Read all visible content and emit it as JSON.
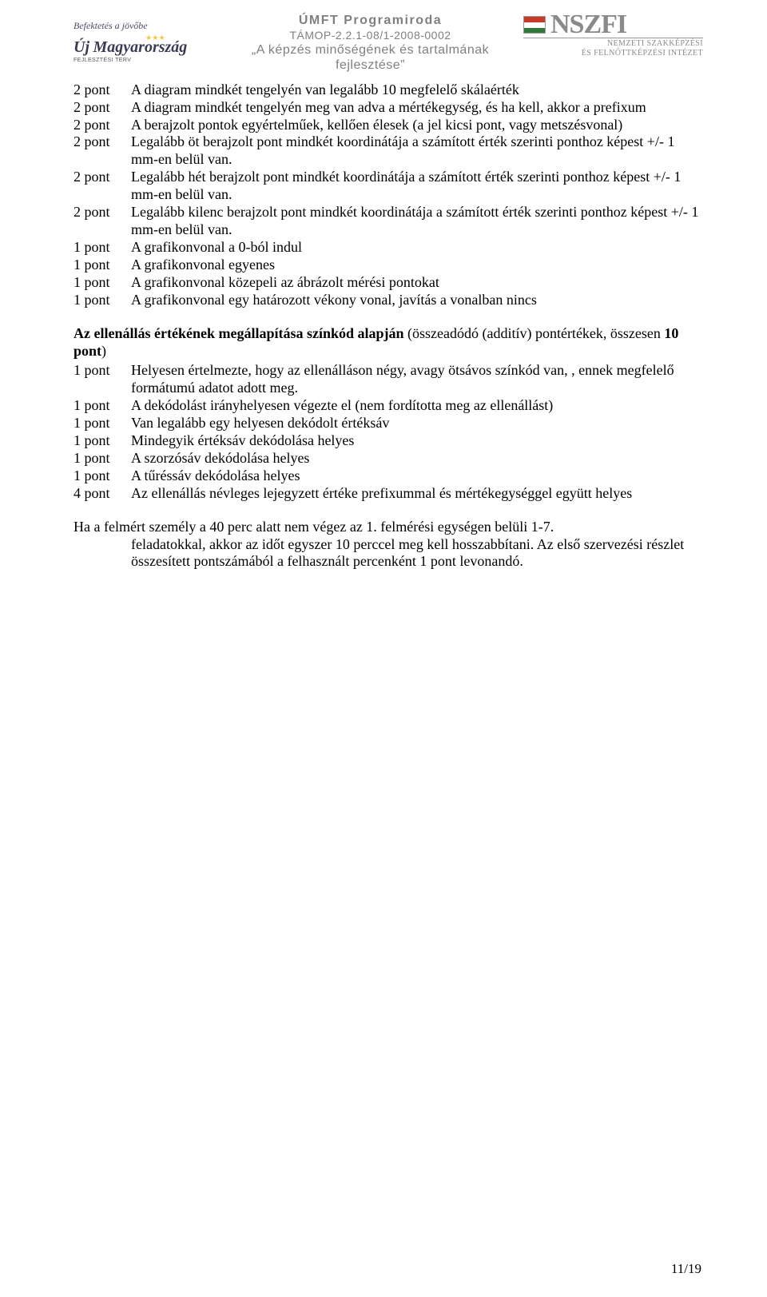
{
  "header": {
    "left_tagline": "Befektetés a jövőbe",
    "left_title1": "Új",
    "left_title2": "Magyarország",
    "left_sub": "FEJLESZTÉSI TERV",
    "center_l1": "ÚMFT Programiroda",
    "center_l2": "TÁMOP-2.2.1-08/1-2008-0002",
    "center_l3": "„A képzés minőségének és tartalmának",
    "center_l4": "fejlesztése”",
    "right_brand": "NSZFI",
    "right_sub1": "NEMZETI SZAKKÉPZÉSI",
    "right_sub2": "ÉS FELNŐTTKÉPZÉSI INTÉZET"
  },
  "section1": [
    {
      "pts": "2 pont",
      "txt": "A diagram mindkét tengelyén van legalább 10 megfelelő skálaérték"
    },
    {
      "pts": "2 pont",
      "txt": "A diagram mindkét tengelyén meg van adva a mértékegység, és ha kell, akkor a prefixum"
    },
    {
      "pts": "2 pont",
      "txt": "A berajzolt pontok egyértelműek, kellően élesek (a jel kicsi pont, vagy metszésvonal)"
    },
    {
      "pts": "2 pont",
      "txt": "Legalább öt berajzolt pont mindkét koordinátája a számított érték szerinti ponthoz képest +/- 1 mm-en belül van."
    },
    {
      "pts": "2 pont",
      "txt": "Legalább hét berajzolt pont mindkét koordinátája a számított érték szerinti ponthoz képest +/- 1 mm-en belül van."
    },
    {
      "pts": "2 pont",
      "txt": "Legalább kilenc berajzolt pont mindkét koordinátája a számított érték szerinti ponthoz képest +/- 1 mm-en belül van."
    },
    {
      "pts": "1 pont",
      "txt": "A grafikonvonal a 0-ból indul"
    },
    {
      "pts": "1 pont",
      "txt": "A grafikonvonal egyenes"
    },
    {
      "pts": "1 pont",
      "txt": "A grafikonvonal közepeli az ábrázolt mérési pontokat"
    },
    {
      "pts": "1 pont",
      "txt": "A grafikonvonal egy határozott vékony vonal, javítás a vonalban nincs"
    }
  ],
  "section2": {
    "title_bold": "Az ellenállás értékének megállapítása színkód alapján",
    "title_rest": " (összeadódó (additív) pontértékek, összesen ",
    "title_bold2": "10 pont",
    "title_end": ")",
    "items": [
      {
        "pts": "1 pont",
        "txt": "Helyesen értelmezte, hogy az ellenálláson négy, avagy ötsávos színkód van, , ennek megfelelő formátumú adatot adott meg."
      },
      {
        "pts": "1 pont",
        "txt": "A dekódolást irányhelyesen végezte el (nem fordította meg az ellenállást)"
      },
      {
        "pts": "1 pont",
        "txt": "Van legalább egy helyesen dekódolt értéksáv"
      },
      {
        "pts": "1 pont",
        "txt": "Mindegyik értéksáv dekódolása helyes"
      },
      {
        "pts": "1 pont",
        "txt": "A szorzósáv dekódolása helyes"
      },
      {
        "pts": "1 pont",
        "txt": "A tűréssáv dekódolása helyes"
      },
      {
        "pts": "4 pont",
        "txt": "Az ellenállás névleges lejegyzett értéke prefixummal és mértékegységgel együtt helyes"
      }
    ]
  },
  "closing": {
    "line1": "Ha a felmért személy a 40 perc alatt nem végez az 1. felmérési egységen belüli 1-7.",
    "rest": "feladatokkal, akkor az időt egyszer 10 perccel meg kell hosszabbítani. Az első szervezési részlet összesített pontszámából a felhasznált percenként 1 pont levonandó."
  },
  "page_number": "11/19"
}
